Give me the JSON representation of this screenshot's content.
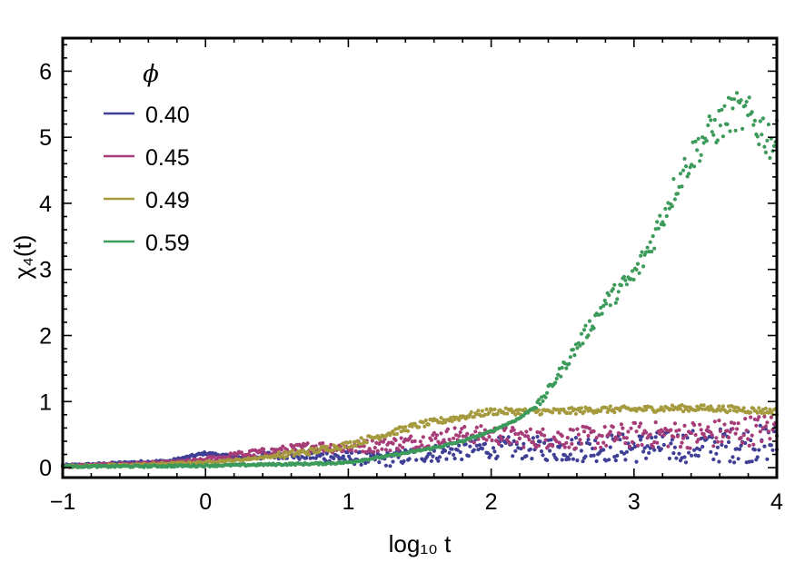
{
  "chart_data": {
    "type": "scatter",
    "xlabel": "log₁₀ t",
    "ylabel": "χ₄(t)",
    "xlim": [
      -1,
      4
    ],
    "ylim": [
      -0.15,
      6.5
    ],
    "xticks": [
      -1,
      0,
      1,
      2,
      3,
      4
    ],
    "yticks": [
      0,
      1,
      2,
      3,
      4,
      5,
      6
    ],
    "legend_title": "ϕ",
    "legend_position": "top-left",
    "grid": false,
    "series": [
      {
        "name": "0.40",
        "color": "#3f3f96",
        "x": [
          -1.0,
          -0.75,
          -0.5,
          -0.25,
          0.0,
          0.25,
          0.5,
          0.75,
          1.0,
          1.25,
          1.5,
          1.75,
          2.0,
          2.25,
          2.5,
          2.75,
          3.0,
          3.25,
          3.5,
          3.75,
          4.0
        ],
        "y": [
          0.03,
          0.05,
          0.08,
          0.1,
          0.22,
          0.15,
          0.2,
          0.18,
          0.15,
          0.12,
          0.2,
          0.25,
          0.3,
          0.3,
          0.28,
          0.3,
          0.3,
          0.32,
          0.33,
          0.35,
          0.38
        ]
      },
      {
        "name": "0.45",
        "color": "#a63c78",
        "x": [
          -1.0,
          -0.75,
          -0.5,
          -0.25,
          0.0,
          0.25,
          0.5,
          0.75,
          1.0,
          1.25,
          1.5,
          1.75,
          2.0,
          2.25,
          2.5,
          2.75,
          3.0,
          3.25,
          3.5,
          3.75,
          4.0
        ],
        "y": [
          0.02,
          0.04,
          0.06,
          0.08,
          0.12,
          0.2,
          0.25,
          0.32,
          0.3,
          0.35,
          0.4,
          0.5,
          0.5,
          0.45,
          0.45,
          0.45,
          0.5,
          0.5,
          0.5,
          0.55,
          0.6
        ]
      },
      {
        "name": "0.49",
        "color": "#a59a3e",
        "x": [
          -1.0,
          -0.75,
          -0.5,
          -0.25,
          0.0,
          0.25,
          0.5,
          0.75,
          1.0,
          1.25,
          1.5,
          1.75,
          2.0,
          2.25,
          2.5,
          2.75,
          3.0,
          3.25,
          3.5,
          3.75,
          4.0
        ],
        "y": [
          0.02,
          0.03,
          0.04,
          0.06,
          0.08,
          0.12,
          0.18,
          0.25,
          0.35,
          0.5,
          0.65,
          0.75,
          0.85,
          0.85,
          0.85,
          0.88,
          0.88,
          0.9,
          0.9,
          0.88,
          0.85
        ]
      },
      {
        "name": "0.59",
        "color": "#3c9a5a",
        "x": [
          -1.0,
          -0.5,
          0.0,
          0.5,
          0.8,
          1.0,
          1.2,
          1.4,
          1.6,
          1.8,
          2.0,
          2.2,
          2.35,
          2.5,
          2.65,
          2.8,
          2.9,
          3.0,
          3.1,
          3.2,
          3.3,
          3.4,
          3.5,
          3.6,
          3.7,
          3.8,
          3.9,
          4.0
        ],
        "y": [
          0.02,
          0.02,
          0.03,
          0.05,
          0.06,
          0.08,
          0.15,
          0.22,
          0.3,
          0.4,
          0.55,
          0.75,
          1.0,
          1.5,
          2.0,
          2.5,
          2.7,
          2.9,
          3.3,
          3.8,
          4.3,
          4.7,
          5.0,
          5.2,
          5.4,
          5.3,
          5.1,
          4.9
        ]
      }
    ]
  }
}
